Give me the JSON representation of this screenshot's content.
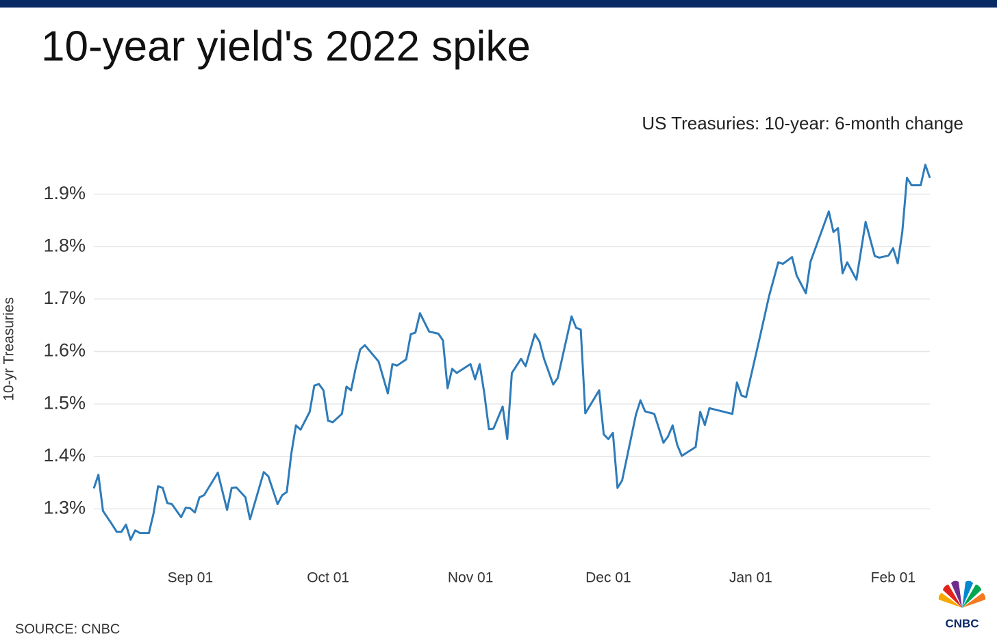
{
  "chart_data": {
    "type": "line",
    "title": "10-year yield's 2022 spike",
    "subtitle": "US Treasuries: 10-year: 6-month change",
    "y_label": "10-yr Treasuries",
    "source": "SOURCE: CNBC",
    "logo": "CNBC",
    "grid": true,
    "ylim": [
      1.2,
      1.97
    ],
    "yticks": [
      {
        "value": 1.3,
        "label": "1.3%"
      },
      {
        "value": 1.4,
        "label": "1.4%"
      },
      {
        "value": 1.5,
        "label": "1.5%"
      },
      {
        "value": 1.6,
        "label": "1.6%"
      },
      {
        "value": 1.7,
        "label": "1.7%"
      },
      {
        "value": 1.8,
        "label": "1.8%"
      },
      {
        "value": 1.9,
        "label": "1.9%"
      }
    ],
    "xticks": [
      "Sep 01",
      "Oct 01",
      "Nov 01",
      "Dec 01",
      "Jan 01",
      "Feb 01"
    ],
    "x": [
      "Aug 11",
      "Aug 12",
      "Aug 13",
      "Aug 14",
      "Aug 15",
      "Aug 16",
      "Aug 17",
      "Aug 18",
      "Aug 19",
      "Aug 20",
      "Aug 21",
      "Aug 23",
      "Aug 24",
      "Aug 25",
      "Aug 26",
      "Aug 27",
      "Aug 28",
      "Aug 30",
      "Aug 31",
      "Sep 01",
      "Sep 02",
      "Sep 03",
      "Sep 04",
      "Sep 07",
      "Sep 09",
      "Sep 10",
      "Sep 11",
      "Sep 13",
      "Sep 14",
      "Sep 17",
      "Sep 18",
      "Sep 20",
      "Sep 21",
      "Sep 22",
      "Sep 23",
      "Sep 24",
      "Sep 25",
      "Sep 27",
      "Sep 28",
      "Sep 29",
      "Sep 30",
      "Oct 01",
      "Oct 02",
      "Oct 04",
      "Oct 05",
      "Oct 06",
      "Oct 07",
      "Oct 08",
      "Oct 09",
      "Oct 12",
      "Oct 14",
      "Oct 15",
      "Oct 16",
      "Oct 18",
      "Oct 19",
      "Oct 20",
      "Oct 21",
      "Oct 23",
      "Oct 25",
      "Oct 26",
      "Oct 27",
      "Oct 28",
      "Oct 29",
      "Nov 01",
      "Nov 02",
      "Nov 03",
      "Nov 04",
      "Nov 05",
      "Nov 06",
      "Nov 08",
      "Nov 09",
      "Nov 10",
      "Nov 12",
      "Nov 13",
      "Nov 15",
      "Nov 16",
      "Nov 17",
      "Nov 19",
      "Nov 20",
      "Nov 23",
      "Nov 24",
      "Nov 25",
      "Nov 26",
      "Nov 29",
      "Nov 30",
      "Dec 01",
      "Dec 02",
      "Dec 03",
      "Dec 04",
      "Dec 07",
      "Dec 08",
      "Dec 09",
      "Dec 11",
      "Dec 13",
      "Dec 14",
      "Dec 15",
      "Dec 16",
      "Dec 17",
      "Dec 20",
      "Dec 21",
      "Dec 22",
      "Dec 23",
      "Dec 28",
      "Dec 29",
      "Dec 30",
      "Dec 31",
      "Jan 03",
      "Jan 05",
      "Jan 07",
      "Jan 08",
      "Jan 10",
      "Jan 11",
      "Jan 13",
      "Jan 14",
      "Jan 18",
      "Jan 19",
      "Jan 20",
      "Jan 21",
      "Jan 22",
      "Jan 24",
      "Jan 26",
      "Jan 28",
      "Jan 29",
      "Jan 31",
      "Feb 01",
      "Feb 02",
      "Feb 03",
      "Feb 04",
      "Feb 05",
      "Feb 07",
      "Feb 08",
      "Feb 09"
    ],
    "series": [
      {
        "name": "10-yr Treasuries",
        "color": "#2e7bb9",
        "values": [
          1.339,
          1.365,
          1.296,
          1.283,
          1.27,
          1.256,
          1.256,
          1.27,
          1.241,
          1.259,
          1.254,
          1.254,
          1.291,
          1.343,
          1.34,
          1.311,
          1.309,
          1.284,
          1.302,
          1.301,
          1.293,
          1.322,
          1.326,
          1.369,
          1.298,
          1.34,
          1.341,
          1.322,
          1.28,
          1.37,
          1.362,
          1.309,
          1.326,
          1.332,
          1.406,
          1.459,
          1.451,
          1.485,
          1.535,
          1.538,
          1.526,
          1.468,
          1.465,
          1.481,
          1.533,
          1.526,
          1.568,
          1.604,
          1.612,
          1.581,
          1.52,
          1.576,
          1.573,
          1.585,
          1.633,
          1.636,
          1.673,
          1.638,
          1.634,
          1.621,
          1.53,
          1.567,
          1.559,
          1.576,
          1.547,
          1.576,
          1.521,
          1.452,
          1.453,
          1.495,
          1.433,
          1.559,
          1.586,
          1.572,
          1.633,
          1.619,
          1.586,
          1.537,
          1.55,
          1.667,
          1.645,
          1.642,
          1.482,
          1.526,
          1.442,
          1.433,
          1.445,
          1.34,
          1.354,
          1.479,
          1.507,
          1.486,
          1.481,
          1.426,
          1.438,
          1.459,
          1.422,
          1.401,
          1.418,
          1.485,
          1.46,
          1.492,
          1.481,
          1.541,
          1.516,
          1.513,
          1.628,
          1.706,
          1.77,
          1.767,
          1.78,
          1.745,
          1.711,
          1.771,
          1.867,
          1.828,
          1.835,
          1.749,
          1.77,
          1.737,
          1.847,
          1.782,
          1.779,
          1.783,
          1.797,
          1.768,
          1.828,
          1.931,
          1.917,
          1.917,
          1.956,
          1.931
        ]
      }
    ]
  }
}
